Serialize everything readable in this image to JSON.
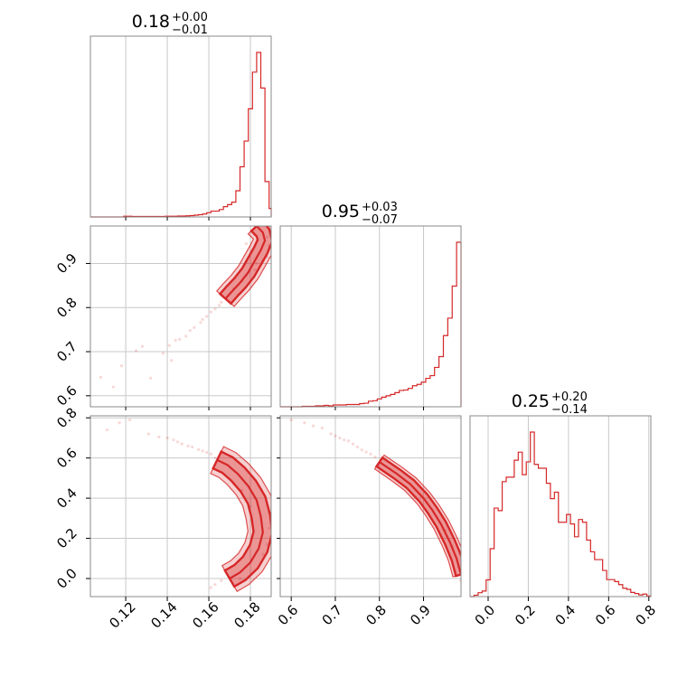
{
  "chart_data": {
    "type": "corner",
    "color": "#d62728",
    "grid": true,
    "parameters": [
      {
        "title": {
          "value": "0.18",
          "plus": "+0.00",
          "minus": "−0.01"
        },
        "range": [
          0.103,
          0.19
        ],
        "ticks": [
          {
            "value": 0.12,
            "label": "0.12"
          },
          {
            "value": 0.14,
            "label": "0.14"
          },
          {
            "value": 0.16,
            "label": "0.16"
          },
          {
            "value": 0.18,
            "label": "0.18"
          }
        ],
        "histogram": {
          "edges": [
            0.103,
            0.105,
            0.107,
            0.109,
            0.111,
            0.113,
            0.115,
            0.117,
            0.119,
            0.121,
            0.123,
            0.125,
            0.127,
            0.129,
            0.131,
            0.133,
            0.135,
            0.137,
            0.139,
            0.141,
            0.143,
            0.145,
            0.147,
            0.149,
            0.151,
            0.153,
            0.155,
            0.157,
            0.159,
            0.161,
            0.163,
            0.165,
            0.167,
            0.169,
            0.171,
            0.173,
            0.175,
            0.177,
            0.179,
            0.181,
            0.183,
            0.185,
            0.187,
            0.189,
            0.19
          ],
          "counts": [
            0,
            0,
            0,
            0,
            0,
            0,
            0,
            0,
            0.3,
            0.3,
            0.2,
            0.2,
            0.2,
            0.2,
            0.2,
            0.2,
            0.2,
            0.2,
            0.3,
            0.3,
            0.3,
            0.4,
            0.4,
            0.5,
            0.6,
            0.8,
            1.0,
            1.3,
            1.9,
            2.6,
            2.6,
            3.3,
            4.6,
            5.5,
            6.6,
            11.7,
            22.4,
            33.9,
            48.3,
            64.7,
            73.5,
            57.6,
            15.8,
            3.8
          ]
        }
      },
      {
        "title": {
          "value": "0.95",
          "plus": "+0.03",
          "minus": "−0.07"
        },
        "range": [
          0.575,
          0.985
        ],
        "ticks": [
          {
            "value": 0.6,
            "label": "0.6"
          },
          {
            "value": 0.7,
            "label": "0.7"
          },
          {
            "value": 0.8,
            "label": "0.8"
          },
          {
            "value": 0.9,
            "label": "0.9"
          }
        ],
        "histogram": {
          "edges": [
            0.575,
            0.585,
            0.595,
            0.605,
            0.615,
            0.625,
            0.635,
            0.645,
            0.655,
            0.665,
            0.675,
            0.685,
            0.695,
            0.705,
            0.715,
            0.725,
            0.735,
            0.745,
            0.755,
            0.765,
            0.775,
            0.785,
            0.795,
            0.805,
            0.815,
            0.825,
            0.835,
            0.845,
            0.855,
            0.865,
            0.875,
            0.885,
            0.895,
            0.905,
            0.915,
            0.925,
            0.935,
            0.945,
            0.955,
            0.965,
            0.975,
            0.985
          ],
          "counts": [
            0,
            0,
            0,
            0,
            0,
            0.2,
            0.2,
            0.2,
            0.4,
            0.4,
            0.6,
            0.4,
            0.8,
            0.8,
            0.8,
            1.0,
            1.0,
            1.0,
            1.4,
            1.6,
            2.5,
            2.7,
            3.5,
            4.3,
            4.9,
            5.5,
            6.3,
            7.3,
            7.5,
            8.2,
            9.4,
            10.0,
            11.0,
            12.7,
            13.9,
            17.6,
            22.4,
            31.8,
            39.6,
            53.9,
            73.5
          ]
        }
      },
      {
        "title": {
          "value": "0.25",
          "plus": "+0.20",
          "minus": "−0.14"
        },
        "range": [
          -0.09,
          0.81
        ],
        "ticks": [
          {
            "value": 0.0,
            "label": "0.0"
          },
          {
            "value": 0.2,
            "label": "0.2"
          },
          {
            "value": 0.4,
            "label": "0.4"
          },
          {
            "value": 0.6,
            "label": "0.6"
          },
          {
            "value": 0.8,
            "label": "0.8"
          }
        ],
        "histogram": {
          "edges": [
            -0.09,
            -0.07,
            -0.05,
            -0.03,
            -0.01,
            0.01,
            0.03,
            0.05,
            0.07,
            0.09,
            0.11,
            0.13,
            0.15,
            0.17,
            0.19,
            0.21,
            0.23,
            0.25,
            0.27,
            0.29,
            0.31,
            0.33,
            0.35,
            0.37,
            0.39,
            0.41,
            0.43,
            0.45,
            0.47,
            0.49,
            0.51,
            0.53,
            0.55,
            0.57,
            0.59,
            0.61,
            0.63,
            0.65,
            0.67,
            0.69,
            0.71,
            0.73,
            0.75,
            0.77,
            0.79,
            0.81
          ],
          "counts": [
            0,
            0.5,
            1.4,
            2.0,
            6.0,
            17.2,
            31.8,
            30.9,
            41.3,
            42.9,
            42.9,
            49.0,
            51.9,
            43.8,
            48.4,
            59.1,
            47.5,
            46.1,
            46.1,
            40.7,
            35.2,
            37.5,
            26.7,
            26.7,
            29.5,
            26.1,
            21.5,
            27.7,
            26.7,
            20.3,
            16.1,
            13.3,
            13.3,
            9.4,
            6.1,
            6.1,
            5.4,
            4.3,
            3.0,
            2.6,
            1.5,
            1.1,
            0.6,
            0.9,
            0.2
          ]
        }
      }
    ],
    "contours": [
      {
        "x_param": 0,
        "y_param": 1,
        "ridge": [
          [
            0.168,
            0.82
          ],
          [
            0.171,
            0.836
          ],
          [
            0.175,
            0.856
          ],
          [
            0.179,
            0.88
          ],
          [
            0.182,
            0.905
          ],
          [
            0.185,
            0.93
          ],
          [
            0.187,
            0.952
          ],
          [
            0.186,
            0.97
          ],
          [
            0.183,
            0.985
          ]
        ],
        "halfwidth": 0.0035
      },
      {
        "x_param": 0,
        "y_param": 2,
        "ridge": [
          [
            0.164,
            0.59
          ],
          [
            0.169,
            0.565
          ],
          [
            0.174,
            0.52
          ],
          [
            0.179,
            0.46
          ],
          [
            0.183,
            0.39
          ],
          [
            0.185,
            0.31
          ],
          [
            0.186,
            0.23
          ],
          [
            0.184,
            0.15
          ],
          [
            0.18,
            0.08
          ],
          [
            0.175,
            0.03
          ],
          [
            0.17,
            0.0
          ]
        ],
        "halfwidth": 0.0045
      },
      {
        "x_param": 1,
        "y_param": 2,
        "ridge": [
          [
            0.8,
            0.58
          ],
          [
            0.84,
            0.52
          ],
          [
            0.87,
            0.47
          ],
          [
            0.9,
            0.4
          ],
          [
            0.92,
            0.34
          ],
          [
            0.94,
            0.27
          ],
          [
            0.96,
            0.18
          ],
          [
            0.975,
            0.1
          ],
          [
            0.985,
            0.02
          ]
        ],
        "halfwidth": 0.012
      }
    ],
    "scatter": [
      {
        "x_param": 0,
        "y_param": 1,
        "points": [
          [
            0.108,
            0.642
          ],
          [
            0.114,
            0.62
          ],
          [
            0.118,
            0.668
          ],
          [
            0.125,
            0.702
          ],
          [
            0.128,
            0.712
          ],
          [
            0.132,
            0.64
          ],
          [
            0.138,
            0.696
          ],
          [
            0.141,
            0.714
          ],
          [
            0.142,
            0.68
          ],
          [
            0.144,
            0.726
          ],
          [
            0.146,
            0.728
          ],
          [
            0.149,
            0.735
          ],
          [
            0.151,
            0.748
          ],
          [
            0.153,
            0.755
          ],
          [
            0.156,
            0.766
          ],
          [
            0.157,
            0.773
          ],
          [
            0.159,
            0.78
          ],
          [
            0.161,
            0.79
          ],
          [
            0.163,
            0.797
          ],
          [
            0.165,
            0.805
          ],
          [
            0.166,
            0.812
          ],
          [
            0.172,
            0.843
          ],
          [
            0.176,
            0.86
          ],
          [
            0.178,
            0.873
          ],
          [
            0.182,
            0.885
          ],
          [
            0.183,
            0.9
          ],
          [
            0.186,
            0.906
          ],
          [
            0.188,
            0.915
          ],
          [
            0.189,
            0.94
          ],
          [
            0.188,
            0.96
          ],
          [
            0.189,
            0.985
          ],
          [
            0.182,
            0.965
          ],
          [
            0.178,
            0.945
          ],
          [
            0.174,
            0.83
          ]
        ]
      },
      {
        "x_param": 0,
        "y_param": 2,
        "points": [
          [
            0.111,
            0.74
          ],
          [
            0.117,
            0.775
          ],
          [
            0.122,
            0.79
          ],
          [
            0.131,
            0.72
          ],
          [
            0.136,
            0.705
          ],
          [
            0.14,
            0.7
          ],
          [
            0.143,
            0.69
          ],
          [
            0.145,
            0.68
          ],
          [
            0.147,
            0.67
          ],
          [
            0.15,
            0.66
          ],
          [
            0.152,
            0.655
          ],
          [
            0.155,
            0.642
          ],
          [
            0.157,
            0.635
          ],
          [
            0.159,
            0.628
          ],
          [
            0.161,
            0.62
          ],
          [
            0.163,
            0.6
          ],
          [
            0.172,
            0.475
          ],
          [
            0.176,
            0.44
          ],
          [
            0.18,
            0.36
          ],
          [
            0.189,
            0.33
          ],
          [
            0.189,
            0.25
          ],
          [
            0.188,
            0.17
          ],
          [
            0.186,
            0.12
          ],
          [
            0.178,
            0.06
          ],
          [
            0.166,
            -0.01
          ],
          [
            0.163,
            -0.03
          ],
          [
            0.161,
            -0.045
          ],
          [
            0.175,
            0.0
          ]
        ]
      },
      {
        "x_param": 1,
        "y_param": 2,
        "points": [
          [
            0.6,
            0.79
          ],
          [
            0.63,
            0.775
          ],
          [
            0.65,
            0.76
          ],
          [
            0.67,
            0.75
          ],
          [
            0.69,
            0.72
          ],
          [
            0.7,
            0.71
          ],
          [
            0.71,
            0.7
          ],
          [
            0.72,
            0.69
          ],
          [
            0.73,
            0.685
          ],
          [
            0.74,
            0.67
          ],
          [
            0.75,
            0.655
          ],
          [
            0.76,
            0.64
          ],
          [
            0.77,
            0.63
          ],
          [
            0.78,
            0.62
          ],
          [
            0.79,
            0.605
          ],
          [
            0.95,
            0.24
          ],
          [
            0.965,
            0.16
          ],
          [
            0.98,
            0.06
          ],
          [
            0.984,
            -0.01
          ],
          [
            0.983,
            0.12
          ]
        ]
      }
    ]
  }
}
